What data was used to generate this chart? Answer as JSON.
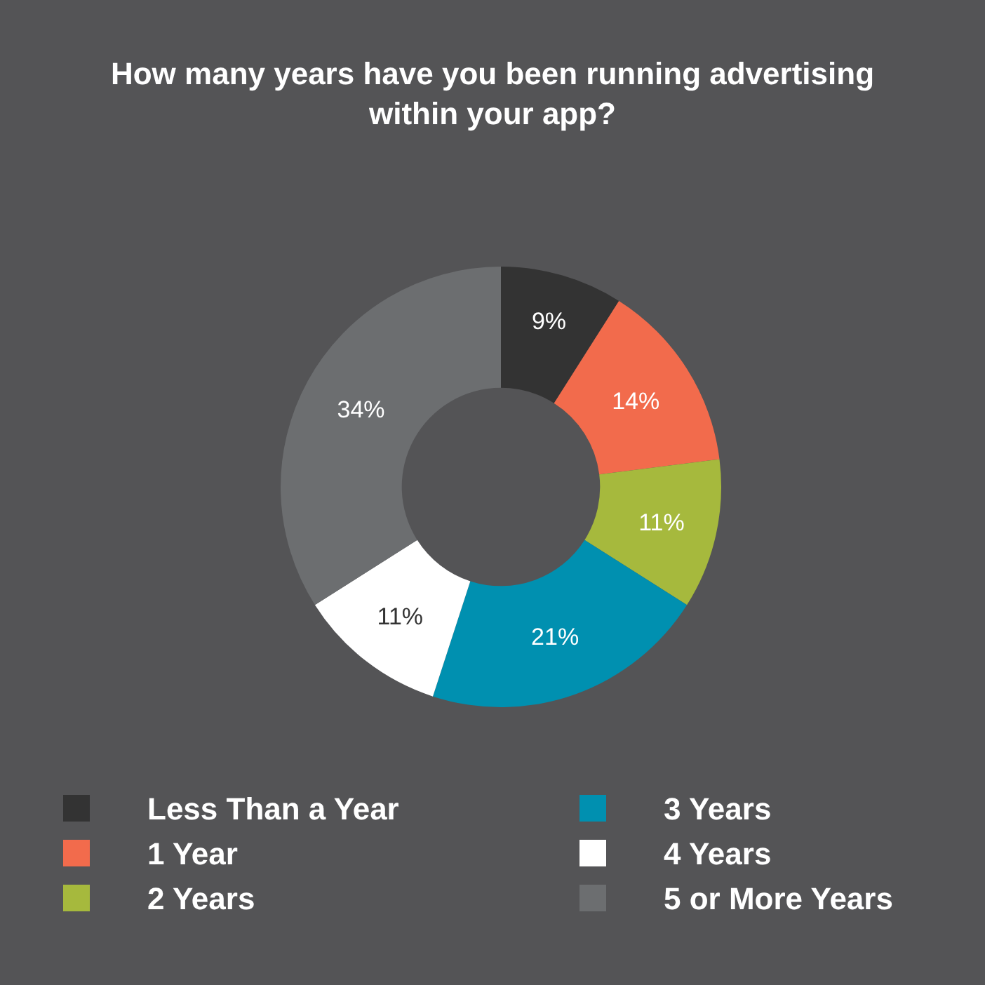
{
  "chart_data": {
    "type": "donut",
    "title": "How many years have you been running advertising within your app?",
    "categories": [
      "Less Than a Year",
      "1 Year",
      "2 Years",
      "3 Years",
      "4 Years",
      "5 or More Years"
    ],
    "values": [
      9,
      14,
      11,
      21,
      11,
      34
    ],
    "colors": [
      "#333333",
      "#f26b4c",
      "#a6b93d",
      "#0090b0",
      "#ffffff",
      "#6c6e70"
    ],
    "value_labels": [
      "9%",
      "14%",
      "11%",
      "21%",
      "11%",
      "34%"
    ],
    "legend": "bottom"
  }
}
